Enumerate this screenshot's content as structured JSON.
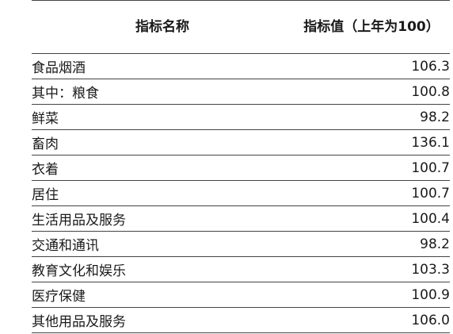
{
  "table": {
    "headers": {
      "name": "指标名称",
      "value": "指标值（上年为100）"
    },
    "rows": [
      {
        "name": "食品烟酒",
        "value": "106.3",
        "indent": 1
      },
      {
        "name": "其中：粮食",
        "value": "100.8",
        "indent": 2
      },
      {
        "name": "鲜菜",
        "value": "98.2",
        "indent": 3
      },
      {
        "name": "畜肉",
        "value": "136.1",
        "indent": 3
      },
      {
        "name": "衣着",
        "value": "100.7",
        "indent": 1
      },
      {
        "name": "居住",
        "value": "100.7",
        "indent": 1
      },
      {
        "name": "生活用品及服务",
        "value": "100.4",
        "indent": 1
      },
      {
        "name": "交通和通讯",
        "value": "98.2",
        "indent": 1
      },
      {
        "name": "教育文化和娱乐",
        "value": "103.3",
        "indent": 0
      },
      {
        "name": "医疗保健",
        "value": "100.9",
        "indent": 0
      },
      {
        "name": "其他用品及服务",
        "value": "106.0",
        "indent": 1
      }
    ]
  }
}
